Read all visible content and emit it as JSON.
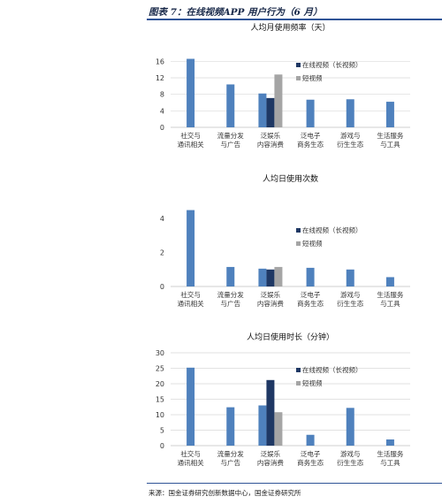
{
  "figure": {
    "title": "图表 7：在线视频APP 用户行为（6 月）",
    "source": "来源：国金证券研究创新数据中心，国金证券研究所"
  },
  "colors": {
    "series_long": "#1f3864",
    "series_short": "#a5a5a5",
    "category_bar": "#4f81bd",
    "accent_rule": "#2f5496"
  },
  "chart_data": [
    {
      "type": "bar",
      "title": "人均月使用频率（天）",
      "categories": [
        "社交与\n通讯相关",
        "流量分发\n与广告",
        "泛娱乐\n内容消费",
        "泛电子\n商务生态",
        "游戏与\n衍生生态",
        "生活服务\n与工具"
      ],
      "series": [
        {
          "name": "在线视频（长视频）",
          "values": [
            null,
            null,
            7.1,
            null,
            null,
            null
          ]
        },
        {
          "name": "短视频",
          "values": [
            null,
            null,
            12.8,
            null,
            null,
            null
          ]
        }
      ],
      "category_values": [
        16.6,
        10.4,
        8.2,
        6.7,
        6.8,
        6.2
      ],
      "ylim": [
        0,
        18
      ],
      "yticks": [
        0,
        4,
        8,
        12,
        16
      ],
      "legend": "top-right",
      "grid": true
    },
    {
      "type": "bar",
      "title": "人均日使用次数",
      "categories": [
        "社交与\n通讯相关",
        "流量分发\n与广告",
        "泛娱乐\n内容消费",
        "泛电子\n商务生态",
        "游戏与\n衍生生态",
        "生活服务\n与工具"
      ],
      "series": [
        {
          "name": "在线视频（长视频）",
          "values": [
            null,
            null,
            1.0,
            null,
            null,
            null
          ]
        },
        {
          "name": "短视频",
          "values": [
            null,
            null,
            1.15,
            null,
            null,
            null
          ]
        }
      ],
      "category_values": [
        4.5,
        1.15,
        1.05,
        1.1,
        1.0,
        0.55
      ],
      "ylim": [
        0,
        5
      ],
      "yticks": [
        0,
        2,
        4
      ],
      "legend": "top-right",
      "grid": false
    },
    {
      "type": "bar",
      "title": "人均日使用时长（分钟）",
      "categories": [
        "社交与\n通讯相关",
        "流量分发\n与广告",
        "泛娱乐\n内容消费",
        "泛电子\n商务生态",
        "游戏与\n衍生生态",
        "生活服务\n与工具"
      ],
      "series": [
        {
          "name": "在线视频（长视频）",
          "values": [
            null,
            null,
            21.2,
            null,
            null,
            null
          ]
        },
        {
          "name": "短视频",
          "values": [
            null,
            null,
            10.8,
            null,
            null,
            null
          ]
        }
      ],
      "category_values": [
        25.2,
        12.4,
        13.0,
        3.5,
        12.2,
        2.0
      ],
      "ylim": [
        0,
        30
      ],
      "yticks": [
        0,
        5,
        10,
        15,
        20,
        25,
        30
      ],
      "legend": "top-right",
      "grid": true
    }
  ]
}
